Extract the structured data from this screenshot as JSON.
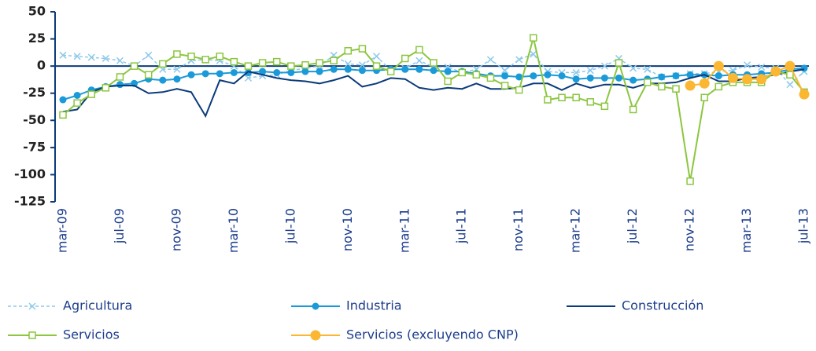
{
  "chart_data": {
    "type": "line",
    "categories": [
      "mar-09",
      null,
      null,
      null,
      "jul-09",
      null,
      null,
      null,
      "nov-09",
      null,
      null,
      null,
      "mar-10",
      null,
      null,
      null,
      "jul-10",
      null,
      null,
      null,
      "nov-10",
      null,
      null,
      null,
      "mar-11",
      null,
      null,
      null,
      "jul-11",
      null,
      null,
      null,
      "nov-11",
      null,
      null,
      null,
      "mar-12",
      null,
      null,
      null,
      "jul-12",
      null,
      null,
      null,
      "nov-12",
      null,
      null,
      null,
      "mar-13",
      null,
      null,
      null,
      "jul-13"
    ],
    "series": [
      {
        "name": "Agricultura",
        "color": "#8ec9ea",
        "values": [
          10,
          9,
          8,
          7,
          5,
          0,
          10,
          -3,
          -3,
          5,
          6,
          5,
          0,
          -11,
          -9,
          -8,
          -4,
          -2,
          0,
          10,
          2,
          1,
          9,
          -4,
          -2,
          5,
          -1,
          -1,
          -6,
          -3,
          6,
          -4,
          6,
          11,
          -5,
          -6,
          -6,
          -4,
          0,
          7,
          -2,
          -3,
          -10,
          -9,
          -7,
          -7,
          -5,
          -4,
          1,
          -1,
          -2,
          -17,
          -5
        ]
      },
      {
        "name": "Industria",
        "color": "#1a9ad8",
        "values": [
          -31,
          -27,
          -22,
          -19,
          -17,
          -16,
          -12,
          -13,
          -12,
          -8,
          -7,
          -7,
          -6,
          -6,
          -5,
          -6,
          -6,
          -5,
          -5,
          -3,
          -3,
          -4,
          -4,
          -3,
          -3,
          -3,
          -4,
          -5,
          -5,
          -7,
          -9,
          -9,
          -10,
          -9,
          -8,
          -9,
          -12,
          -11,
          -11,
          -11,
          -13,
          -12,
          -10,
          -9,
          -8,
          -8,
          -9,
          -8,
          -8,
          -7,
          -6,
          -3,
          -2
        ]
      },
      {
        "name": "Construcción",
        "color": "#0b3b7a",
        "values": [
          -42,
          -40,
          -24,
          -19,
          -18,
          -18,
          -25,
          -24,
          -21,
          -24,
          -46,
          -13,
          -16,
          -5,
          -8,
          -11,
          -13,
          -14,
          -16,
          -13,
          -9,
          -19,
          -16,
          -11,
          -12,
          -20,
          -22,
          -20,
          -21,
          -16,
          -21,
          -21,
          -20,
          -16,
          -16,
          -22,
          -16,
          -20,
          -17,
          -17,
          -20,
          -16,
          -16,
          -15,
          -11,
          -8,
          -14,
          -14,
          -11,
          -10,
          -8,
          -5,
          -3
        ]
      },
      {
        "name": "Servicios",
        "color": "#8cc63f",
        "values": [
          -45,
          -34,
          -26,
          -20,
          -10,
          0,
          -8,
          2,
          11,
          9,
          6,
          9,
          4,
          0,
          3,
          4,
          0,
          1,
          3,
          5,
          14,
          16,
          0,
          -5,
          7,
          15,
          3,
          -14,
          -6,
          -8,
          -11,
          -18,
          -22,
          26,
          -31,
          -29,
          -29,
          -33,
          -37,
          3,
          -40,
          -15,
          -19,
          -21,
          -106,
          -29,
          -19,
          -15,
          -15,
          -15,
          -5,
          -8,
          -24
        ]
      },
      {
        "name": "Servicios (excluyendo CNP)",
        "color": "#fbb731",
        "values": [
          null,
          null,
          null,
          null,
          null,
          null,
          null,
          null,
          null,
          null,
          null,
          null,
          null,
          null,
          null,
          null,
          null,
          null,
          null,
          null,
          null,
          null,
          null,
          null,
          null,
          null,
          null,
          null,
          null,
          null,
          null,
          null,
          null,
          null,
          null,
          null,
          null,
          null,
          null,
          null,
          null,
          null,
          null,
          null,
          -18,
          -16,
          0,
          -11,
          -12,
          -12,
          -5,
          0,
          -26
        ]
      }
    ],
    "ylim": [
      -125,
      50
    ],
    "yticks": [
      50,
      25,
      0,
      -25,
      -50,
      -75,
      -100,
      -125
    ],
    "grid": false
  }
}
